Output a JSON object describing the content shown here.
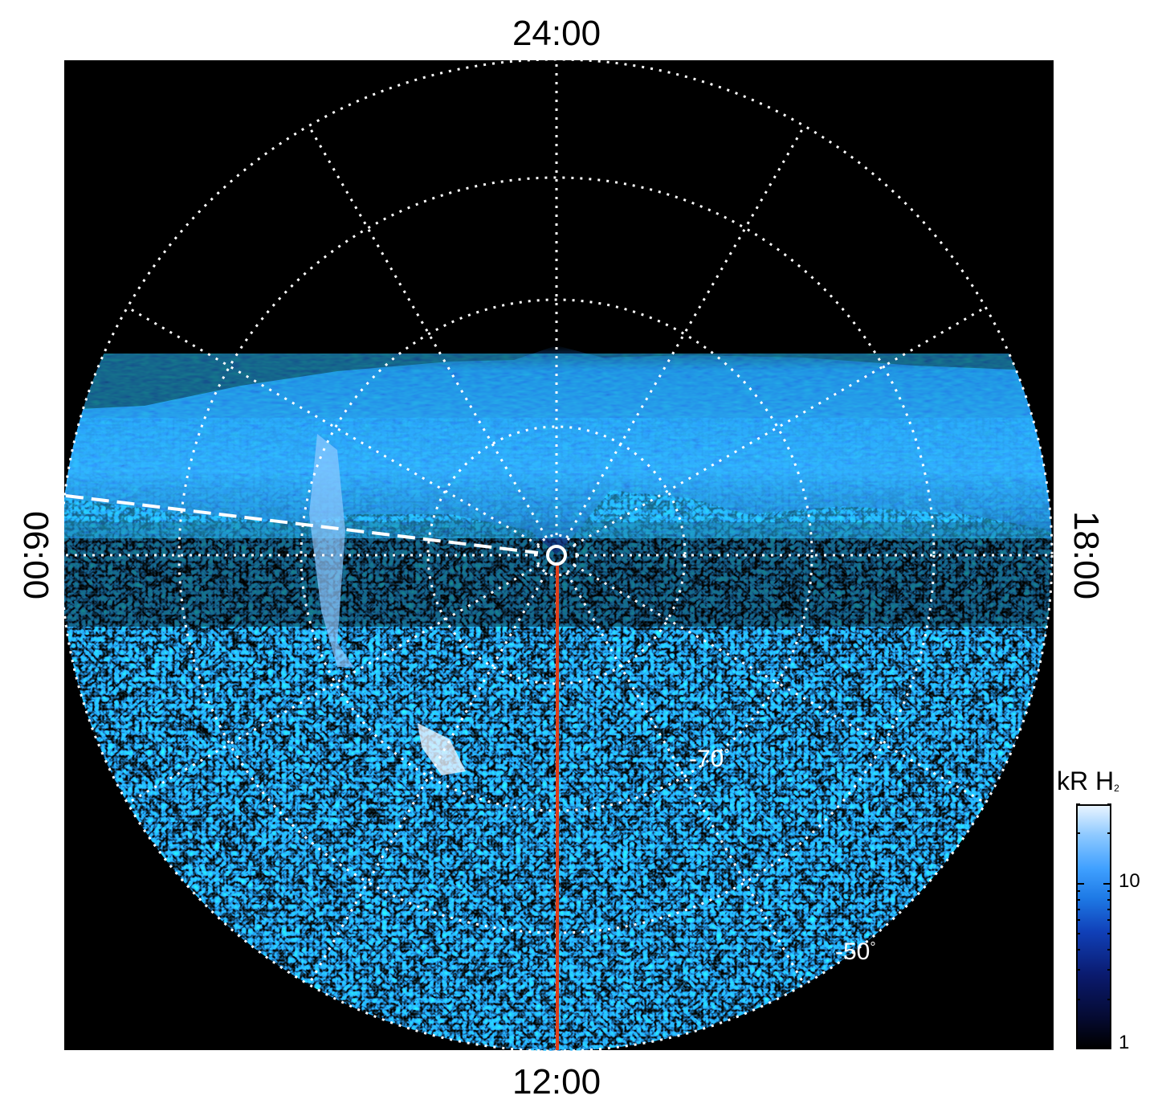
{
  "figure": {
    "local_time_labels": {
      "top": "24:00",
      "bottom": "12:00",
      "left": "06:00",
      "right": "18:00"
    },
    "latitude_labels": [
      {
        "id": "lat-70",
        "text": "-70",
        "unit": "°"
      },
      {
        "id": "lat-50",
        "text": "-50",
        "unit": "°"
      }
    ],
    "colorbar": {
      "title_main": "kR H",
      "title_sub": "2",
      "ticks": [
        {
          "value": 10,
          "label": "10"
        },
        {
          "value": 1,
          "label": "1"
        }
      ],
      "scale": "log",
      "range": [
        1,
        30
      ]
    },
    "colors": {
      "background_plot": "#000000",
      "grid": "#ffffff",
      "meridian_line": "#e0401a",
      "emission_dark": "#0a1a6e",
      "emission_mid": "#1e7ae6",
      "emission_bright": "#e8f4ff"
    },
    "icons": {
      "pole_marker": "pole-circle-icon"
    }
  }
}
